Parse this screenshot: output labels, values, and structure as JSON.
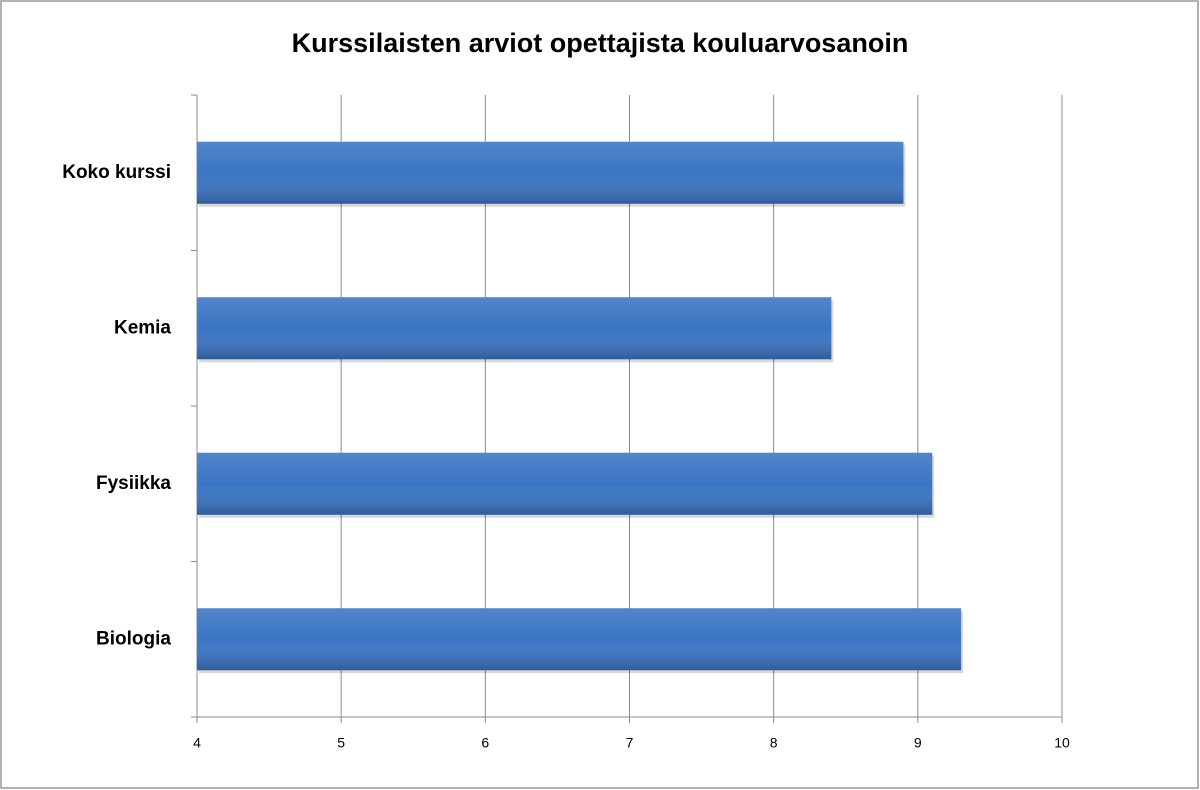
{
  "chart_data": {
    "type": "barh",
    "title": "Kurssilaisten arviot opettajista kouluarvosanoin",
    "categories": [
      "Koko kurssi",
      "Kemia",
      "Fysiikka",
      "Biologia"
    ],
    "values": [
      8.9,
      8.4,
      9.1,
      9.3
    ],
    "color": "#3a75c4",
    "xlim": [
      4,
      10
    ],
    "xticks": [
      4,
      5,
      6,
      7,
      8,
      9,
      10
    ],
    "grid": true
  }
}
